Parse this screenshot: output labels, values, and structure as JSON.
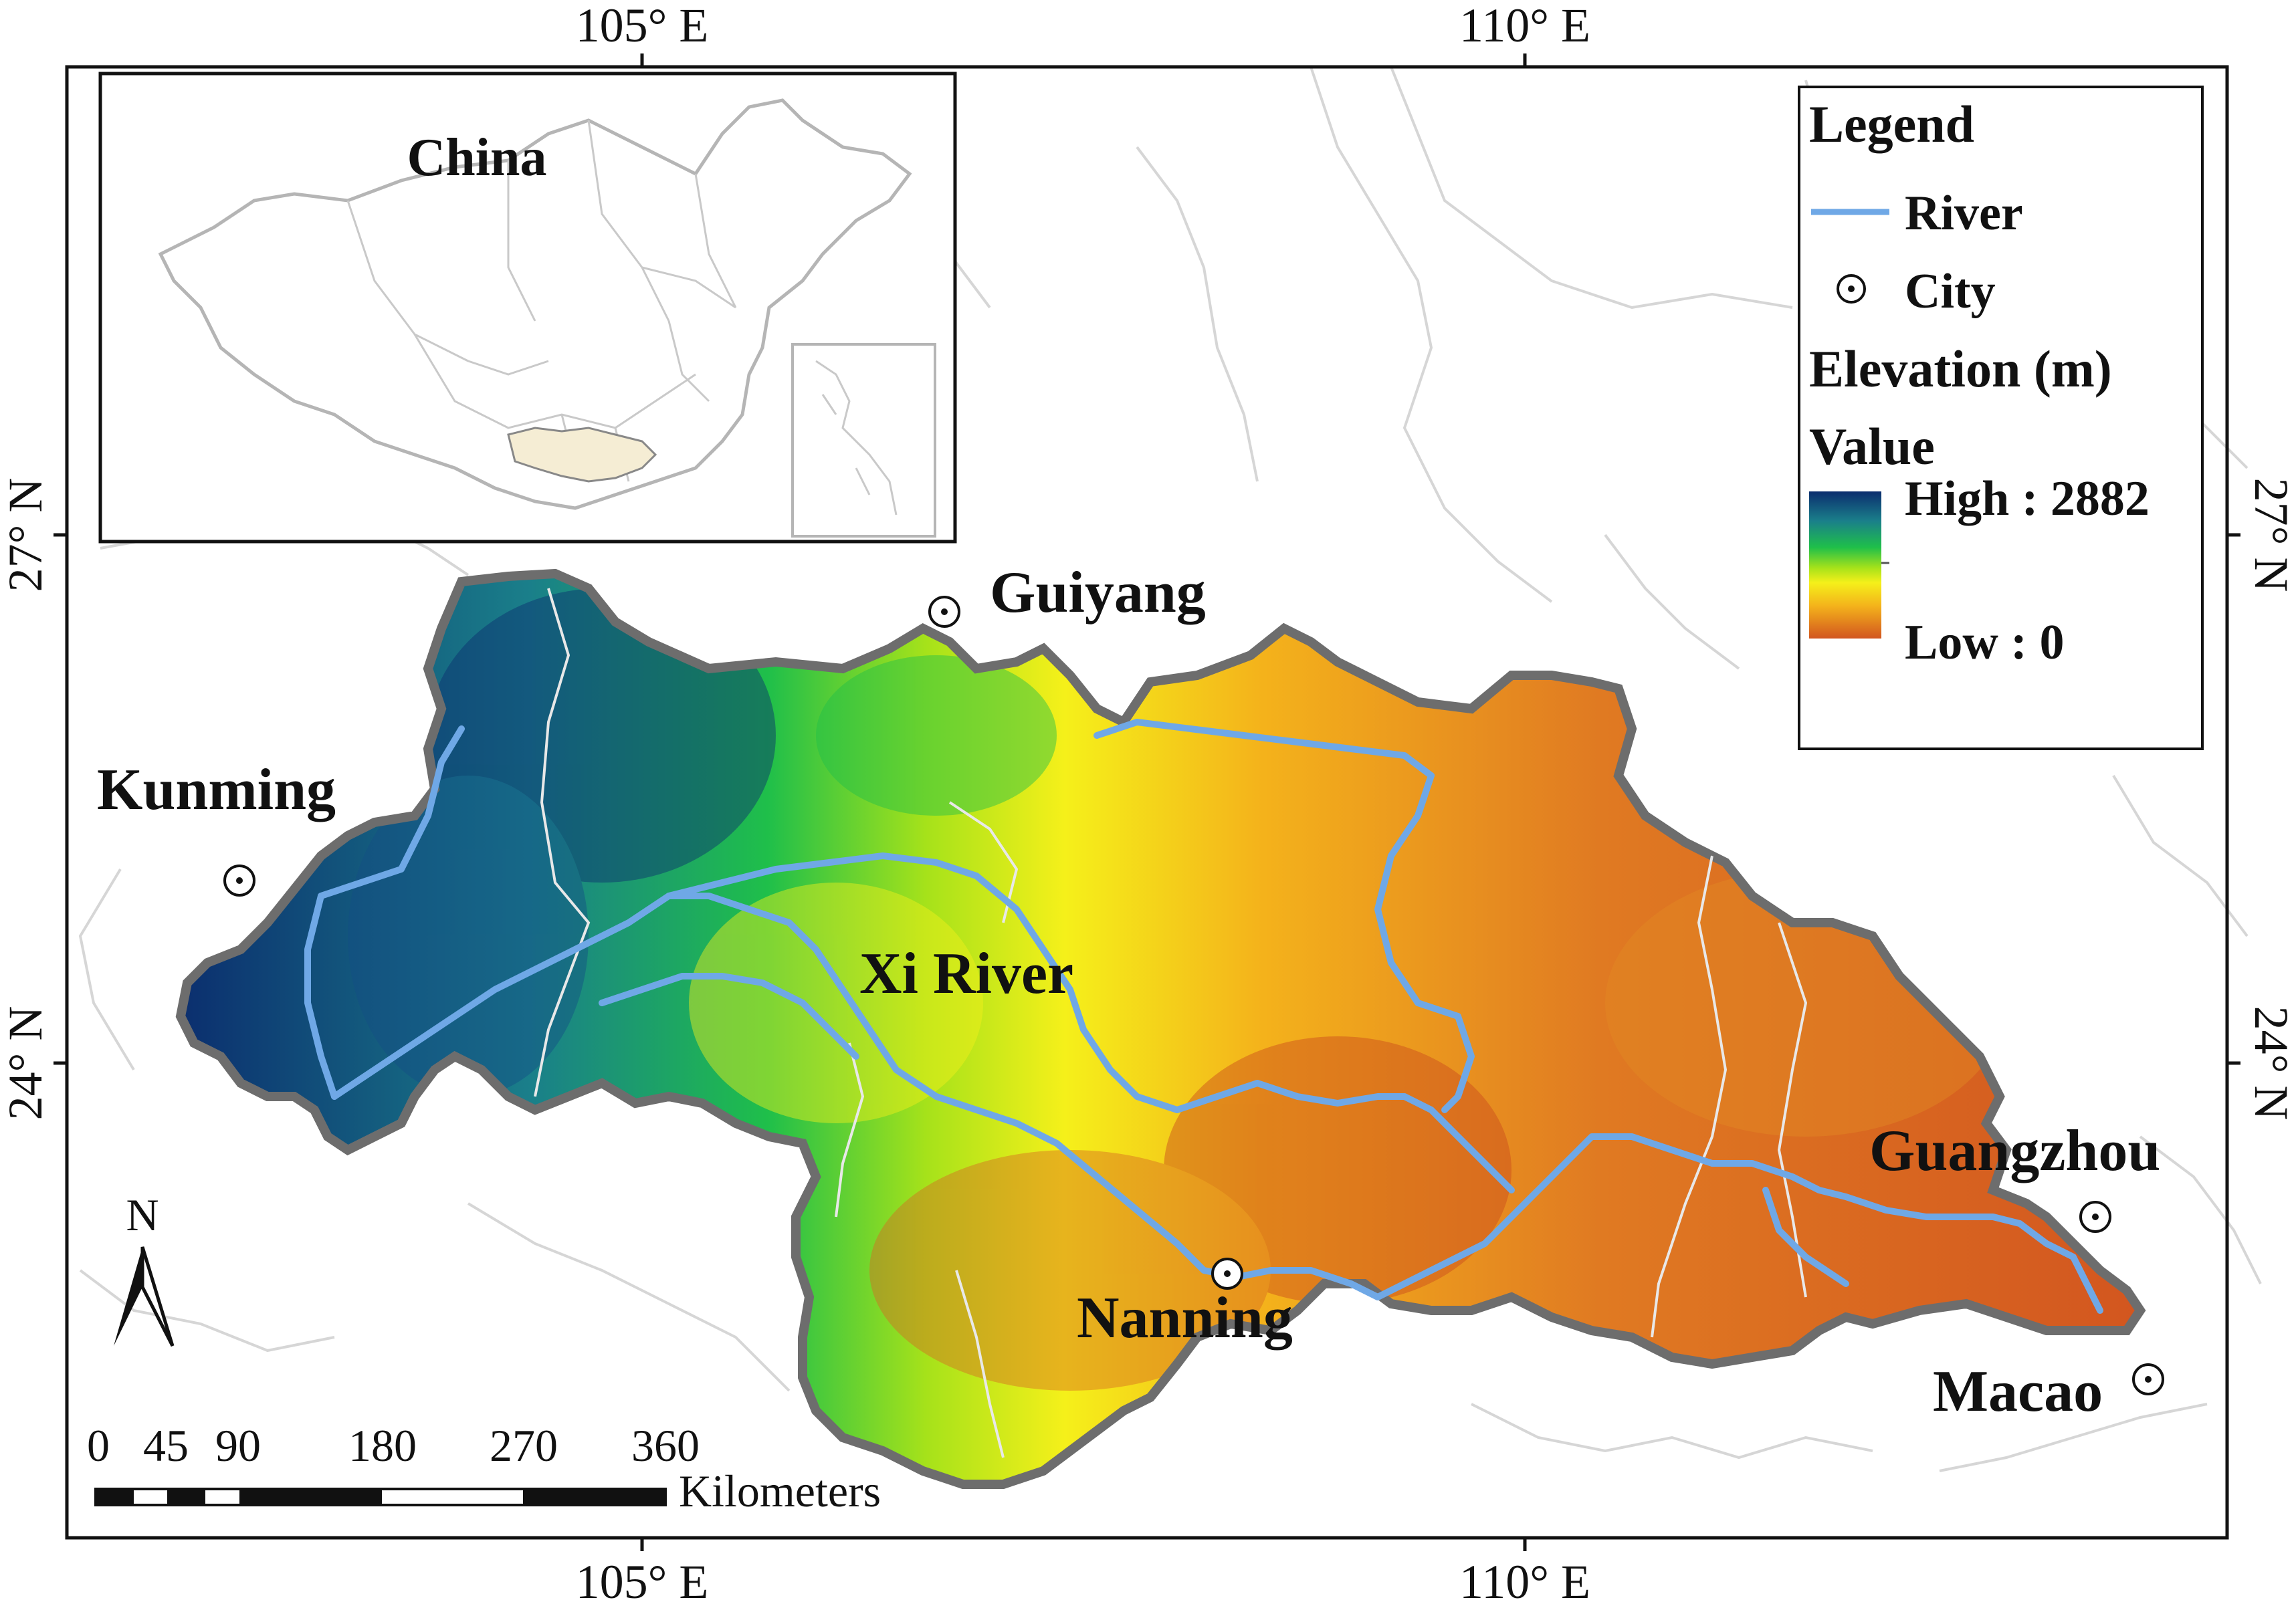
{
  "graticule": {
    "lon_labels": [
      "105° E",
      "110° E"
    ],
    "lat_labels": [
      "27° N",
      "24° N"
    ]
  },
  "inset": {
    "title": "China"
  },
  "cities": [
    {
      "name": "Kunming"
    },
    {
      "name": "Guiyang"
    },
    {
      "name": "Nanning"
    },
    {
      "name": "Guangzhou"
    },
    {
      "name": "Macao"
    }
  ],
  "basin_label": "Xi River",
  "legend": {
    "title": "Legend",
    "river_label": "River",
    "city_label": "City",
    "elevation_title": "Elevation (m)",
    "value_label": "Value",
    "high_label": "High : 2882",
    "low_label": "Low : 0",
    "ramp_colors": [
      "#0b2d6e",
      "#1a7f8a",
      "#1fbf4a",
      "#a6e21a",
      "#f5f01a",
      "#f4b21b",
      "#d2551f"
    ]
  },
  "north_arrow": {
    "label": "N"
  },
  "scale_bar": {
    "ticks": [
      "0",
      "45",
      "90",
      "180",
      "270",
      "360"
    ],
    "unit": "Kilometers"
  },
  "colors": {
    "river": "#6fa8e6",
    "basin_outline": "#6d6d6d",
    "province_lines": "#cfcfcf"
  }
}
